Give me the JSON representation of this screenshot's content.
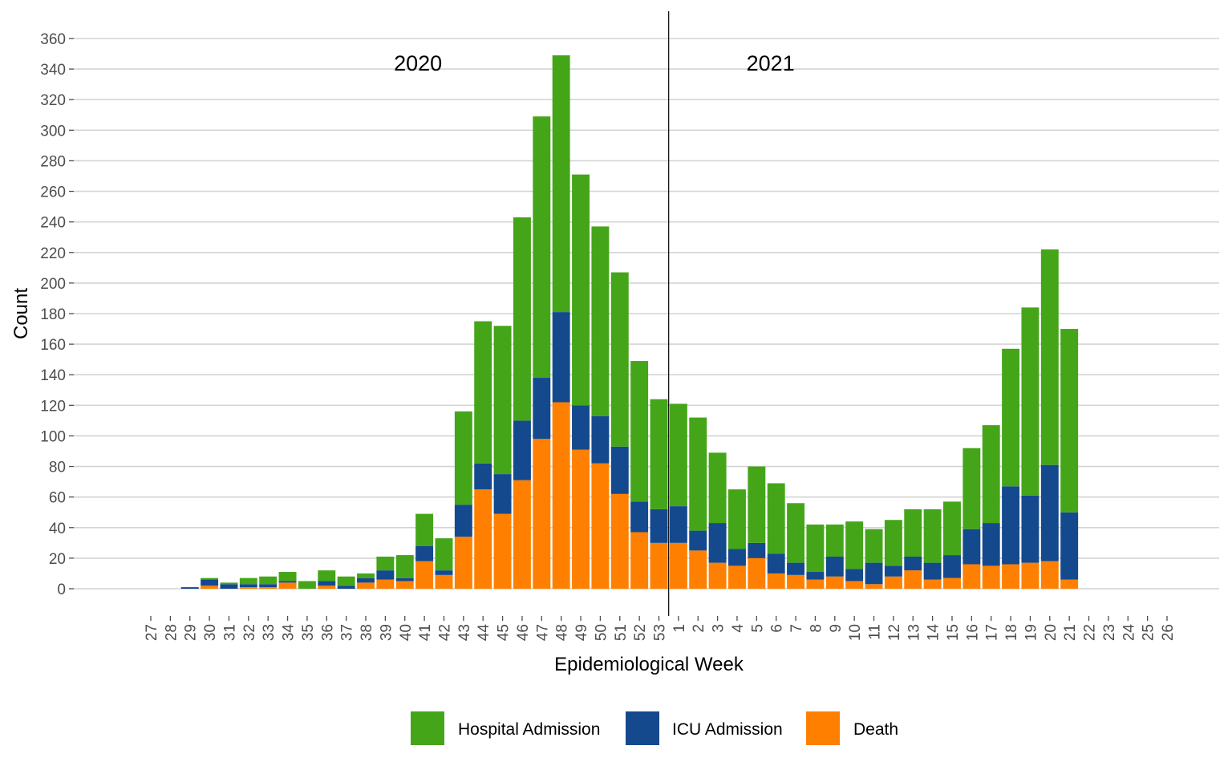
{
  "chart_data": {
    "type": "bar",
    "stacked": true,
    "xlabel": "Epidemiological Week",
    "ylabel": "Count",
    "ylim": [
      0,
      360
    ],
    "ytick_step": 20,
    "grid": "horizontal major gridlines",
    "legend_placement": "bottom",
    "categories": [
      "27",
      "28",
      "29",
      "30",
      "31",
      "32",
      "33",
      "34",
      "35",
      "36",
      "37",
      "38",
      "39",
      "40",
      "41",
      "42",
      "43",
      "44",
      "45",
      "46",
      "47",
      "48",
      "49",
      "50",
      "51",
      "52",
      "53",
      "1",
      "2",
      "3",
      "4",
      "5",
      "6",
      "7",
      "8",
      "9",
      "10",
      "11",
      "12",
      "13",
      "14",
      "15",
      "16",
      "17",
      "18",
      "19",
      "20",
      "21",
      "22",
      "23",
      "24",
      "25",
      "26"
    ],
    "series": [
      {
        "name": "Hospital Admission",
        "color": "#45a519",
        "values": [
          0,
          0,
          0,
          1,
          1,
          4,
          5,
          6,
          5,
          7,
          6,
          3,
          9,
          15,
          21,
          21,
          61,
          93,
          97,
          133,
          171,
          168,
          151,
          124,
          114,
          92,
          72,
          67,
          74,
          46,
          39,
          50,
          46,
          39,
          31,
          21,
          31,
          22,
          30,
          31,
          35,
          35,
          53,
          64,
          90,
          123,
          141,
          120,
          0,
          0,
          0,
          0,
          0
        ]
      },
      {
        "name": "ICU Admission",
        "color": "#15498d",
        "values": [
          0,
          0,
          1,
          4,
          3,
          2,
          2,
          1,
          0,
          3,
          2,
          3,
          6,
          2,
          10,
          3,
          21,
          17,
          26,
          39,
          40,
          59,
          29,
          31,
          31,
          20,
          22,
          24,
          13,
          26,
          11,
          10,
          13,
          8,
          5,
          13,
          8,
          14,
          7,
          9,
          11,
          15,
          23,
          28,
          51,
          44,
          63,
          44,
          0,
          0,
          0,
          0,
          0
        ]
      },
      {
        "name": "Death",
        "color": "#ff8000",
        "values": [
          0,
          0,
          0,
          2,
          0,
          1,
          1,
          4,
          0,
          2,
          0,
          4,
          6,
          5,
          18,
          9,
          34,
          65,
          49,
          71,
          98,
          122,
          91,
          82,
          62,
          37,
          30,
          30,
          25,
          17,
          15,
          20,
          10,
          9,
          6,
          8,
          5,
          3,
          8,
          12,
          6,
          7,
          16,
          15,
          16,
          17,
          18,
          6,
          0,
          0,
          0,
          0,
          0
        ]
      }
    ],
    "annotations": [
      {
        "text": "2020",
        "at_category": "41"
      },
      {
        "text": "2021",
        "at_category": "6"
      }
    ],
    "divider_between": [
      "53",
      "1"
    ]
  }
}
